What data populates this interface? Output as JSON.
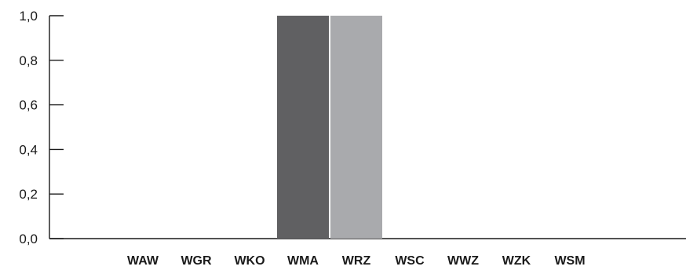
{
  "chart_data": {
    "type": "bar",
    "categories": [
      "WAW",
      "WGR",
      "WKO",
      "WMA",
      "WRZ",
      "WSC",
      "WWZ",
      "WZK",
      "WSM"
    ],
    "values": [
      0.0,
      0.0,
      0.0,
      1.0,
      1.0,
      0.0,
      0.0,
      0.0,
      0.0
    ],
    "bar_colors": [
      "#606062",
      "#606062",
      "#606062",
      "#606062",
      "#a9aaad",
      "#606062",
      "#606062",
      "#606062",
      "#606062"
    ],
    "ylim": [
      0,
      1.0
    ],
    "yticks": [
      "0,0",
      "0,2",
      "0,4",
      "0,6",
      "0,8",
      "1,0"
    ],
    "title": "",
    "xlabel": "",
    "ylabel": "",
    "grid": false,
    "legend": "none"
  }
}
